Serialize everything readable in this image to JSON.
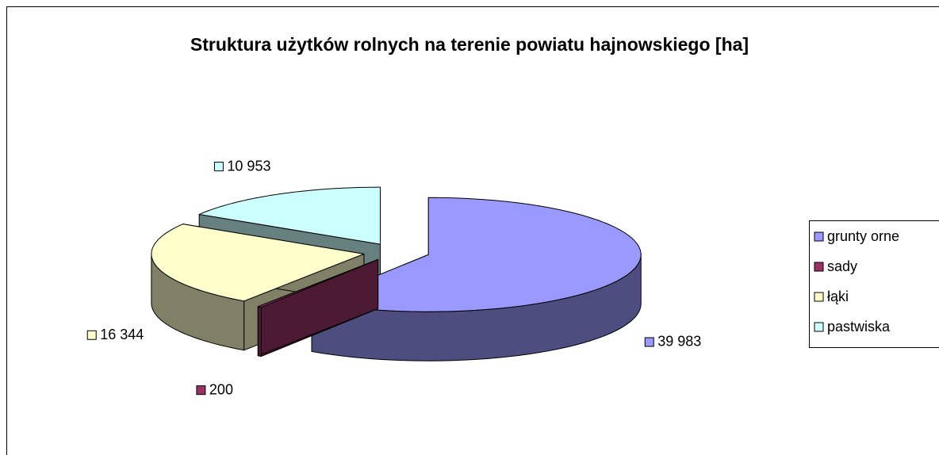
{
  "chart_data": {
    "type": "pie3d",
    "title": "Struktura użytków rolnych na terenie powiatu hajnowskiego [ha]",
    "categories": [
      "grunty orne",
      "sady",
      "łąki",
      "pastwiska"
    ],
    "values": [
      39983,
      200,
      16344,
      10953
    ],
    "value_labels": [
      "39 983",
      "200",
      "16 344",
      "10 953"
    ],
    "colors": [
      "#9999ff",
      "#993366",
      "#ffffcc",
      "#ccffff"
    ],
    "legend": "right"
  }
}
